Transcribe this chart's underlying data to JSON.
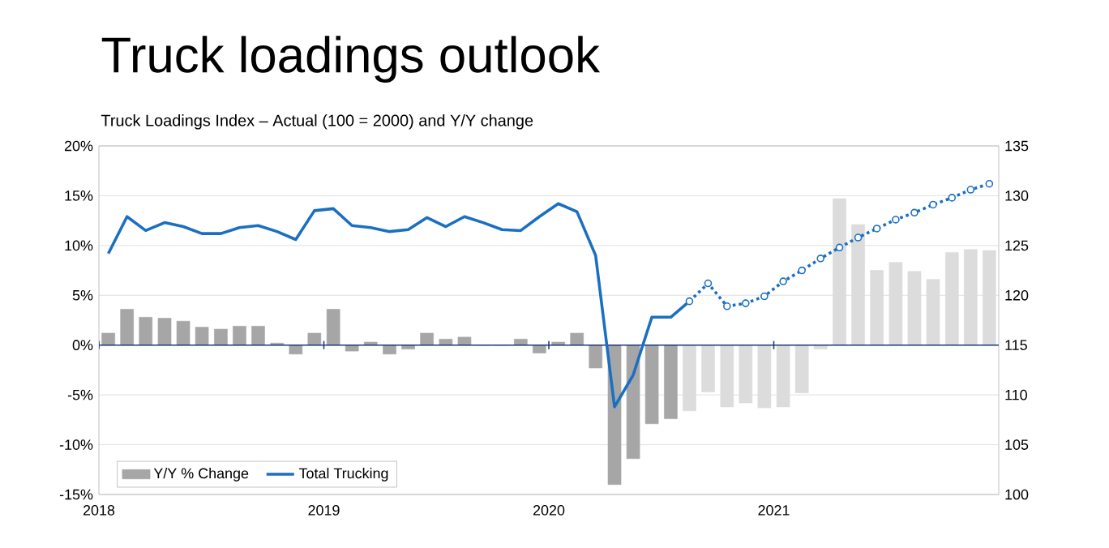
{
  "chart_data": {
    "type": "bar",
    "title": "Truck loadings outlook",
    "subtitle": "Truck Loadings Index – Actual (100 = 2000) and Y/Y change",
    "xlim": [
      2018,
      2022
    ],
    "xticks": [
      2018,
      2019,
      2020,
      2021
    ],
    "ylim": [
      -15,
      20
    ],
    "yticks": [
      {
        "value": -15,
        "label": "-15%"
      },
      {
        "value": -10,
        "label": "-10%"
      },
      {
        "value": -5,
        "label": "-5%"
      },
      {
        "value": 0,
        "label": "0%"
      },
      {
        "value": 5,
        "label": "5%"
      },
      {
        "value": 10,
        "label": "10%"
      },
      {
        "value": 15,
        "label": "15%"
      },
      {
        "value": 20,
        "label": "20%"
      }
    ],
    "y2lim": [
      100,
      135
    ],
    "y2ticks": [
      100,
      105,
      110,
      115,
      120,
      125,
      130,
      135
    ],
    "grid": "y",
    "legend": "bottom left",
    "ref_lines": [
      {
        "axis": "y",
        "value": 0,
        "color": "#1f3a7a"
      }
    ],
    "series": [
      {
        "name": "Y/Y % Change",
        "color": "#a6a6a6",
        "x": [
          2018.042,
          2018.125,
          2018.208,
          2018.292,
          2018.375,
          2018.458,
          2018.542,
          2018.625,
          2018.708,
          2018.792,
          2018.875,
          2018.958,
          2019.042,
          2019.125,
          2019.208,
          2019.292,
          2019.375,
          2019.458,
          2019.542,
          2019.625,
          2019.708,
          2019.792,
          2019.875,
          2019.958,
          2020.042,
          2020.125,
          2020.208,
          2020.292,
          2020.375,
          2020.458,
          2020.542
        ],
        "values": [
          1.2,
          3.6,
          2.8,
          2.7,
          2.4,
          1.8,
          1.6,
          1.9,
          1.9,
          0.2,
          -0.9,
          1.2,
          3.6,
          -0.6,
          0.3,
          -0.9,
          -0.4,
          1.2,
          0.6,
          0.8,
          0,
          0,
          0.6,
          -0.8,
          0.3,
          1.2,
          -2.3,
          -14.0,
          -11.4,
          -7.9,
          -7.4
        ]
      },
      {
        "color": "#dcdcdc",
        "x": [
          2020.625,
          2020.708,
          2020.792,
          2020.875,
          2020.958,
          2021.042,
          2021.125,
          2021.208,
          2021.292,
          2021.375,
          2021.458,
          2021.542,
          2021.625,
          2021.708,
          2021.792,
          2021.875,
          2021.958
        ],
        "values": [
          -6.6,
          -4.7,
          -6.2,
          -5.8,
          -6.3,
          -6.2,
          -4.8,
          -0.4,
          14.7,
          12.1,
          7.5,
          8.3,
          7.4,
          6.6,
          9.3,
          9.6,
          9.5
        ]
      },
      {
        "name": "Total Trucking",
        "type": "line",
        "axis": "y2",
        "color": "#1b6fc2",
        "line_style": "solid",
        "marker": "none",
        "x": [
          2018.042,
          2018.125,
          2018.208,
          2018.292,
          2018.375,
          2018.458,
          2018.542,
          2018.625,
          2018.708,
          2018.792,
          2018.875,
          2018.958,
          2019.042,
          2019.125,
          2019.208,
          2019.292,
          2019.375,
          2019.458,
          2019.542,
          2019.625,
          2019.708,
          2019.792,
          2019.875,
          2019.958,
          2020.042,
          2020.125,
          2020.208,
          2020.292,
          2020.375,
          2020.458,
          2020.542,
          2020.625
        ],
        "values": [
          124.2,
          127.9,
          126.5,
          127.3,
          126.9,
          126.2,
          126.2,
          126.8,
          127.0,
          126.4,
          125.6,
          128.5,
          128.7,
          127.0,
          126.8,
          126.4,
          126.6,
          127.8,
          126.9,
          127.9,
          127.3,
          126.6,
          126.5,
          127.9,
          129.2,
          128.4,
          124.0,
          108.8,
          112.0,
          117.8,
          117.8,
          119.4
        ]
      },
      {
        "type": "line",
        "axis": "y2",
        "color": "#1b6fc2",
        "line_style": "dotted",
        "marker": "circle",
        "x": [
          2020.625,
          2020.708,
          2020.792,
          2020.875,
          2020.958,
          2021.042,
          2021.125,
          2021.208,
          2021.292,
          2021.375,
          2021.458,
          2021.542,
          2021.625,
          2021.708,
          2021.792,
          2021.875,
          2021.958
        ],
        "values": [
          119.4,
          121.2,
          118.9,
          119.2,
          119.9,
          121.4,
          122.5,
          123.7,
          124.8,
          125.8,
          126.7,
          127.6,
          128.3,
          129.1,
          129.8,
          130.6,
          131.2
        ]
      }
    ]
  }
}
